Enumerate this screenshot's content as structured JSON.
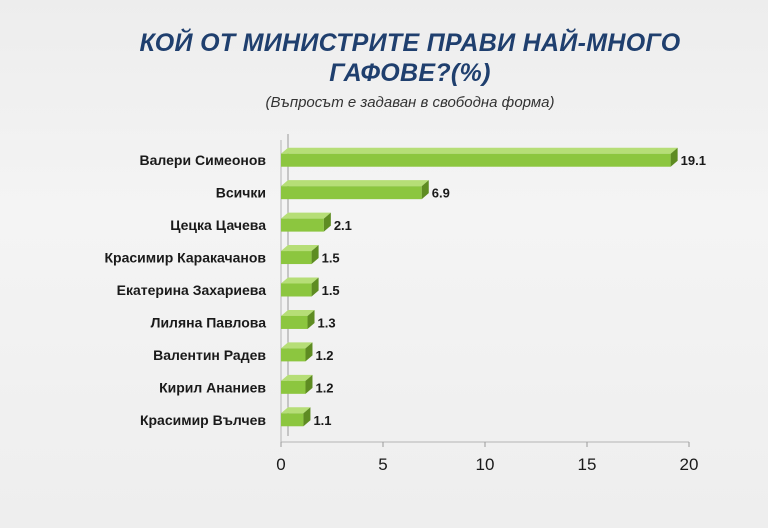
{
  "chart_data": {
    "type": "bar",
    "orientation": "horizontal",
    "title": "КОЙ ОТ МИНИСТРИТЕ ПРАВИ НАЙ-МНОГО ГАФОВЕ?(%)",
    "subtitle": "(Въпросът е задаван в свободна форма)",
    "categories": [
      "Валери Симеонов",
      "Всички",
      "Цецка Цачева",
      "Красимир Каракачанов",
      "Екатерина Захариева",
      "Лиляна Павлова",
      "Валентин Радев",
      "Кирил Ананиев",
      "Красимир Вълчев"
    ],
    "values": [
      19.1,
      6.9,
      2.1,
      1.5,
      1.5,
      1.3,
      1.2,
      1.2,
      1.1
    ],
    "value_labels": [
      "19.1",
      "6.9",
      "2.1",
      "1.5",
      "1.5",
      "1.3",
      "1.2",
      "1.2",
      "1.1"
    ],
    "xlim": [
      0,
      20
    ],
    "xticks": [
      0,
      5,
      10,
      15,
      20
    ],
    "xtick_labels": [
      "0",
      "5",
      "10",
      "15",
      "20"
    ],
    "grid": false,
    "legend": "none",
    "bar_color": "#8cc63f",
    "bar_color_dark": "#5e8c22"
  }
}
